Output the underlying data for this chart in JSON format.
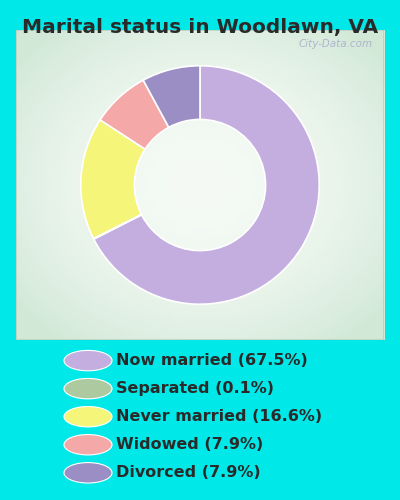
{
  "title": "Marital status in Woodlawn, VA",
  "slices": [
    67.5,
    0.1,
    16.6,
    7.9,
    7.9
  ],
  "labels": [
    "Now married (67.5%)",
    "Separated (0.1%)",
    "Never married (16.6%)",
    "Widowed (7.9%)",
    "Divorced (7.9%)"
  ],
  "colors": [
    "#c4aee0",
    "#adc9a0",
    "#f5f57a",
    "#f5a8a8",
    "#9b8ec4"
  ],
  "bg_color": "#00e8e8",
  "chart_border_color": "#ccddcc",
  "title_fontsize": 14.5,
  "legend_fontsize": 11.5,
  "donut_width": 0.45,
  "watermark": "City-Data.com",
  "title_color": "#2a2a2a",
  "legend_text_color": "#2a2a2a"
}
